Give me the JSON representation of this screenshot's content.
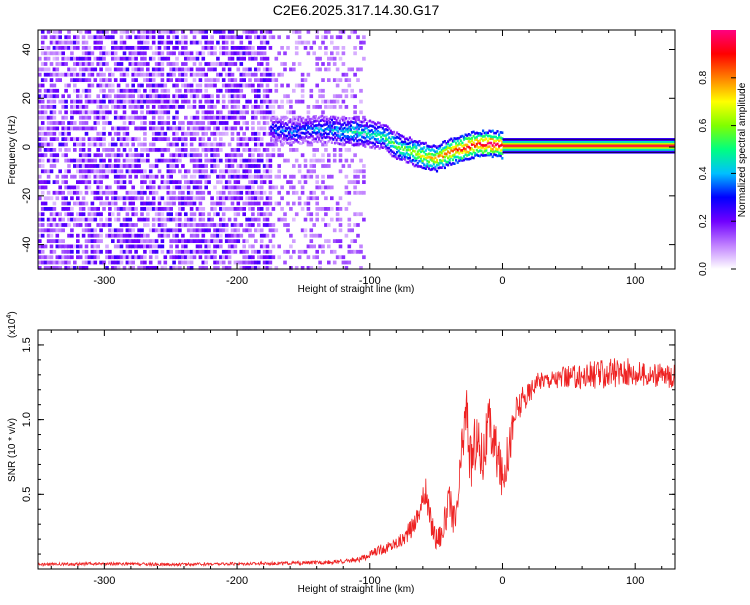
{
  "title": "C2E6.2025.317.14.30.G17",
  "chart_data": [
    {
      "type": "heatmap",
      "xlabel": "Height of straight line (km)",
      "ylabel": "Frequency (Hz)",
      "xlim": [
        -350,
        130
      ],
      "ylim": [
        -50,
        48
      ],
      "x_ticks": [
        -300,
        -200,
        -100,
        0,
        100
      ],
      "x_tick_labels": [
        "-300",
        "-200",
        "-100",
        "0",
        "100"
      ],
      "y_ticks": [
        -40,
        -20,
        0,
        20,
        40
      ],
      "y_tick_labels": [
        "-40",
        "-20",
        "0",
        "20",
        "40"
      ],
      "colorbar": {
        "label": "Normalized spectral amplitude",
        "range": [
          0,
          1
        ],
        "ticks": [
          0.0,
          0.2,
          0.4,
          0.6,
          0.8
        ],
        "tick_labels": [
          "0.0",
          "0.2",
          "0.4",
          "0.6",
          "0.8"
        ],
        "colors": [
          "#ffffff",
          "#c080ff",
          "#7000ff",
          "#0000ff",
          "#00c0ff",
          "#00ff80",
          "#80ff00",
          "#ffff00",
          "#ff8000",
          "#ff0000",
          "#ff0080"
        ]
      },
      "noise_region": {
        "x": [
          -350,
          -105
        ],
        "amplitude_range": [
          0.05,
          0.25
        ]
      },
      "signal_track": {
        "x": [
          -175,
          -160,
          -145,
          -130,
          -120,
          -110,
          -100,
          -90,
          -80,
          -70,
          -60,
          -50,
          -40,
          -30,
          -20,
          -10,
          0,
          130
        ],
        "frequency": [
          7,
          6,
          7,
          7,
          6,
          6,
          5,
          4,
          0,
          -2,
          -4,
          -5,
          -2,
          -1,
          1,
          1,
          0.5,
          0.5
        ],
        "amplitude": [
          0.3,
          0.35,
          0.35,
          0.4,
          0.45,
          0.5,
          0.45,
          0.5,
          0.55,
          0.6,
          0.7,
          0.75,
          0.85,
          0.9,
          0.9,
          0.95,
          0.95,
          1.0
        ]
      }
    },
    {
      "type": "line",
      "xlabel": "Height of straight line (km)",
      "ylabel": "SNR (10 * v/v)",
      "y_multiplier_label": "(x10",
      "y_multiplier_exp": "4",
      "y_multiplier_close": ")",
      "xlim": [
        -350,
        130
      ],
      "ylim": [
        0,
        1.6
      ],
      "x_ticks": [
        -300,
        -200,
        -100,
        0,
        100
      ],
      "x_tick_labels": [
        "-300",
        "-200",
        "-100",
        "0",
        "100"
      ],
      "y_ticks": [
        0.5,
        1.0,
        1.5
      ],
      "y_tick_labels": [
        "0.5",
        "1.0",
        "1.5"
      ],
      "series": [
        {
          "name": "SNR",
          "color": "#ee2222",
          "x": [
            -350,
            -300,
            -250,
            -200,
            -150,
            -120,
            -105,
            -95,
            -85,
            -75,
            -68,
            -62,
            -58,
            -55,
            -50,
            -45,
            -40,
            -35,
            -30,
            -27,
            -24,
            -20,
            -15,
            -10,
            -5,
            0,
            5,
            10,
            15,
            20,
            25,
            30,
            50,
            70,
            90,
            110,
            130
          ],
          "y": [
            0.03,
            0.035,
            0.03,
            0.035,
            0.04,
            0.05,
            0.07,
            0.12,
            0.15,
            0.2,
            0.28,
            0.4,
            0.52,
            0.35,
            0.2,
            0.25,
            0.45,
            0.3,
            0.85,
            1.08,
            0.7,
            0.88,
            0.75,
            0.95,
            0.8,
            0.6,
            0.82,
            1.05,
            1.12,
            1.18,
            1.25,
            1.27,
            1.28,
            1.3,
            1.32,
            1.3,
            1.29
          ],
          "noise_amplitude": [
            0.01,
            0.01,
            0.01,
            0.01,
            0.012,
            0.015,
            0.02,
            0.03,
            0.04,
            0.05,
            0.07,
            0.08,
            0.1,
            0.1,
            0.08,
            0.1,
            0.12,
            0.12,
            0.18,
            0.2,
            0.2,
            0.2,
            0.2,
            0.2,
            0.18,
            0.15,
            0.15,
            0.12,
            0.1,
            0.08,
            0.06,
            0.06,
            0.08,
            0.1,
            0.1,
            0.08,
            0.08
          ]
        }
      ]
    }
  ]
}
